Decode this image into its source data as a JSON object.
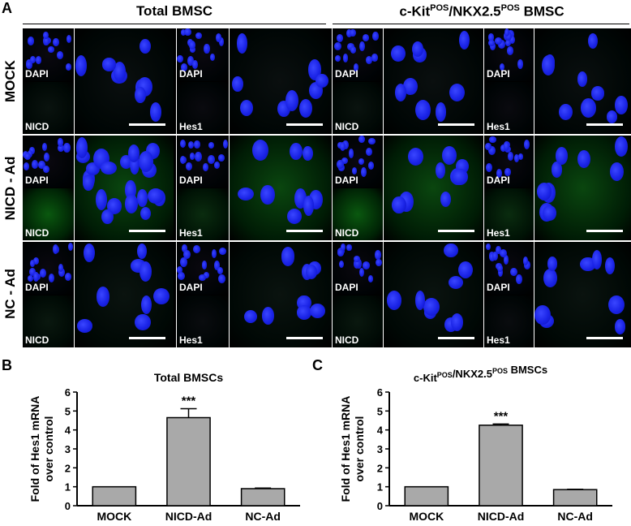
{
  "panels": {
    "A": {
      "letter": "A",
      "groups": [
        {
          "title": "Total BMSC"
        },
        {
          "title_main": "c-Kit",
          "title_sup1": "POS",
          "title_mid": "/NKX2.5",
          "title_sup2": "POS",
          "title_end": " BMSC"
        }
      ],
      "rows": [
        "MOCK",
        "NICD - Ad",
        "NC - Ad"
      ],
      "labels": {
        "dapi": "DAPI",
        "nicd": "NICD",
        "hes1": "Hes1"
      },
      "colors": {
        "nucleus": "#1a23e6",
        "green": "#1d8a2a",
        "background": "#000000"
      }
    },
    "B": {
      "letter": "B"
    },
    "C": {
      "letter": "C"
    }
  },
  "chart_data": [
    {
      "type": "bar",
      "title": "Total BMSCs",
      "ylabel": "Fold of  Hes1 mRNA over control",
      "categories": [
        "MOCK",
        "NICD-Ad",
        "NC-Ad"
      ],
      "values": [
        1.0,
        4.65,
        0.9
      ],
      "errors": [
        0.0,
        0.47,
        0.03
      ],
      "annotations": [
        {
          "category": "NICD-Ad",
          "text": "***"
        }
      ],
      "ylim": [
        0,
        6
      ],
      "yticks": [
        0,
        1,
        2,
        3,
        4,
        5,
        6
      ],
      "bar_color": "#a9a9a9"
    },
    {
      "type": "bar",
      "title_main": "c-Kit",
      "title_sup1": "POS",
      "title_mid": "/NKX2.5",
      "title_sup2": "POS",
      "title_end": " BMSCs",
      "ylabel": "Fold of  Hes1 mRNA over control",
      "categories": [
        "MOCK",
        "NICD-Ad",
        "NC-Ad"
      ],
      "values": [
        1.0,
        4.25,
        0.85
      ],
      "errors": [
        0.0,
        0.06,
        0.02
      ],
      "annotations": [
        {
          "category": "NICD-Ad",
          "text": "***"
        }
      ],
      "ylim": [
        0,
        6
      ],
      "yticks": [
        0,
        1,
        2,
        3,
        4,
        5,
        6
      ],
      "bar_color": "#a9a9a9"
    }
  ]
}
